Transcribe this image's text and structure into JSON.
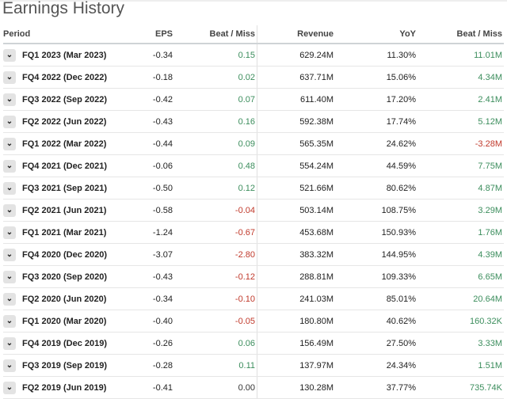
{
  "title": "Earnings History",
  "headers": [
    "Period",
    "EPS",
    "Beat / Miss",
    "Revenue",
    "YoY",
    "Beat / Miss"
  ],
  "rows": [
    [
      "FQ1 2023 (Mar 2023)",
      "-0.34",
      "0.15",
      "629.24M",
      "11.30%",
      "11.01M"
    ],
    [
      "FQ4 2022 (Dec 2022)",
      "-0.18",
      "0.02",
      "637.71M",
      "15.06%",
      "4.34M"
    ],
    [
      "FQ3 2022 (Sep 2022)",
      "-0.42",
      "0.07",
      "611.40M",
      "17.20%",
      "2.41M"
    ],
    [
      "FQ2 2022 (Jun 2022)",
      "-0.43",
      "0.16",
      "592.38M",
      "17.74%",
      "5.12M"
    ],
    [
      "FQ1 2022 (Mar 2022)",
      "-0.44",
      "0.09",
      "565.35M",
      "24.62%",
      "-3.28M"
    ],
    [
      "FQ4 2021 (Dec 2021)",
      "-0.06",
      "0.48",
      "554.24M",
      "44.59%",
      "7.75M"
    ],
    [
      "FQ3 2021 (Sep 2021)",
      "-0.50",
      "0.12",
      "521.66M",
      "80.62%",
      "4.87M"
    ],
    [
      "FQ2 2021 (Jun 2021)",
      "-0.58",
      "-0.04",
      "503.14M",
      "108.75%",
      "3.29M"
    ],
    [
      "FQ1 2021 (Mar 2021)",
      "-1.24",
      "-0.67",
      "453.68M",
      "150.93%",
      "1.76M"
    ],
    [
      "FQ4 2020 (Dec 2020)",
      "-3.07",
      "-2.80",
      "383.32M",
      "144.95%",
      "4.39M"
    ],
    [
      "FQ3 2020 (Sep 2020)",
      "-0.43",
      "-0.12",
      "288.81M",
      "109.33%",
      "6.65M"
    ],
    [
      "FQ2 2020 (Jun 2020)",
      "-0.34",
      "-0.10",
      "241.03M",
      "85.01%",
      "20.64M"
    ],
    [
      "FQ1 2020 (Mar 2020)",
      "-0.40",
      "-0.05",
      "180.80M",
      "40.62%",
      "160.32K"
    ],
    [
      "FQ4 2019 (Dec 2019)",
      "-0.26",
      "0.06",
      "156.49M",
      "27.50%",
      "3.33M"
    ],
    [
      "FQ3 2019 (Sep 2019)",
      "-0.28",
      "0.11",
      "137.97M",
      "24.34%",
      "1.51M"
    ],
    [
      "FQ2 2019 (Jun 2019)",
      "-0.41",
      "0.00",
      "130.28M",
      "37.77%",
      "735.74K"
    ]
  ],
  "colors": {
    "positive": "#3b8d5c",
    "negative": "#c0392b"
  },
  "icons": {
    "expand": "chevron-down-icon"
  }
}
